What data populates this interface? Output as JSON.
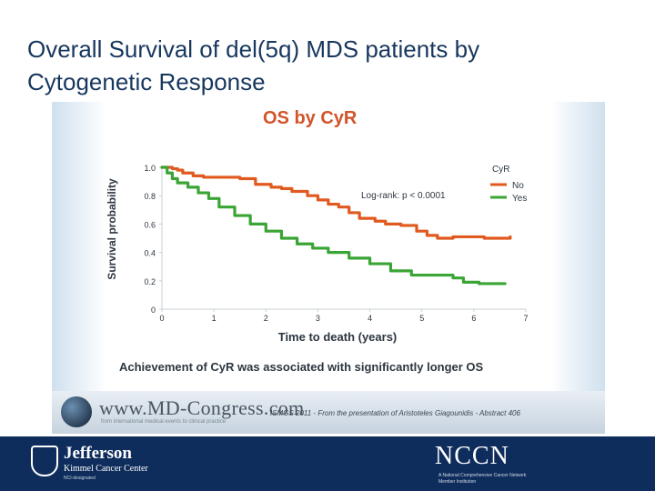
{
  "slide": {
    "title_line1": "Overall Survival of del(5q) MDS patients by",
    "title_line2": "Cytogenetic Response"
  },
  "chart_data": {
    "type": "line",
    "title": "OS by CyR",
    "xlabel": "Time to death (years)",
    "ylabel": "Survival probability",
    "xlim": [
      0,
      7
    ],
    "ylim": [
      0,
      1.0
    ],
    "x_ticks": [
      "0",
      "1",
      "2",
      "3",
      "4",
      "5",
      "6",
      "7"
    ],
    "y_ticks": [
      "0",
      "0.2",
      "0.4",
      "0.6",
      "0.8",
      "1.0"
    ],
    "legend_title": "CyR",
    "annotation": "Log-rank: p < 0.0001",
    "series": [
      {
        "name": "No",
        "color": "#e05a1f",
        "x": [
          0,
          0.2,
          0.3,
          0.4,
          0.6,
          0.8,
          1.2,
          1.5,
          1.8,
          2.1,
          2.3,
          2.5,
          2.8,
          3.0,
          3.2,
          3.4,
          3.6,
          3.8,
          4.1,
          4.3,
          4.6,
          4.9,
          5.1,
          5.3,
          5.6,
          5.9,
          6.2,
          6.5,
          6.7
        ],
        "y": [
          1.0,
          0.99,
          0.98,
          0.96,
          0.94,
          0.93,
          0.93,
          0.92,
          0.88,
          0.86,
          0.85,
          0.83,
          0.8,
          0.77,
          0.74,
          0.72,
          0.68,
          0.64,
          0.62,
          0.6,
          0.59,
          0.55,
          0.52,
          0.5,
          0.51,
          0.51,
          0.5,
          0.5,
          0.51
        ]
      },
      {
        "name": "Yes",
        "color": "#3aa535",
        "x": [
          0,
          0.1,
          0.2,
          0.3,
          0.5,
          0.7,
          0.9,
          1.1,
          1.4,
          1.7,
          2.0,
          2.3,
          2.6,
          2.9,
          3.2,
          3.6,
          4.0,
          4.4,
          4.8,
          5.3,
          5.6,
          5.8,
          6.1,
          6.4,
          6.6
        ],
        "y": [
          1.0,
          0.96,
          0.92,
          0.89,
          0.86,
          0.82,
          0.78,
          0.72,
          0.66,
          0.6,
          0.55,
          0.5,
          0.46,
          0.43,
          0.4,
          0.36,
          0.32,
          0.27,
          0.24,
          0.24,
          0.22,
          0.19,
          0.18,
          0.18,
          0.18
        ]
      }
    ],
    "caption": "Achievement of CyR was associated with significantly longer OS",
    "footer_site": "www.MD-Congress.com",
    "footer_site_sub": "from international medical events to clinical practice",
    "footer_source": "ISMGS 2011 - From the presentation of Aristoteles Giagounidis - Abstract 406"
  },
  "footer": {
    "org_name": "Jefferson",
    "org_sub": "Kimmel Cancer Center",
    "org_sub2": "NCI-designated",
    "partner_logo": "NCCN",
    "partner_sub": "A National Comprehensive Cancer Network Member Institution"
  }
}
